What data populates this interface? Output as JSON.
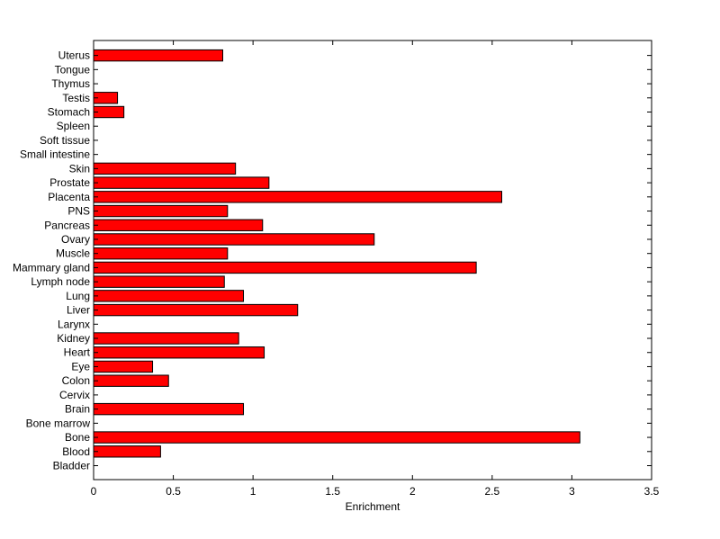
{
  "chart_data": {
    "type": "bar",
    "orientation": "horizontal",
    "title": "",
    "xlabel": "Enrichment",
    "ylabel": "",
    "xlim": [
      0,
      3.5
    ],
    "xticks": [
      "0",
      "0.5",
      "1",
      "1.5",
      "2",
      "2.5",
      "3",
      "3.5"
    ],
    "grid": false,
    "bar_color": "#ff0000",
    "bar_edge_color": "#000000",
    "categories": [
      "Bladder",
      "Blood",
      "Bone",
      "Bone marrow",
      "Brain",
      "Cervix",
      "Colon",
      "Eye",
      "Heart",
      "Kidney",
      "Larynx",
      "Liver",
      "Lung",
      "Lymph node",
      "Mammary gland",
      "Muscle",
      "Ovary",
      "Pancreas",
      "PNS",
      "Placenta",
      "Prostate",
      "Skin",
      "Small intestine",
      "Soft tissue",
      "Spleen",
      "Stomach",
      "Testis",
      "Thymus",
      "Tongue",
      "Uterus"
    ],
    "values": [
      0,
      0.42,
      3.05,
      0,
      0.94,
      0,
      0.47,
      0.37,
      1.07,
      0.91,
      0,
      1.28,
      0.94,
      0.82,
      2.4,
      0.84,
      1.76,
      1.06,
      0.84,
      2.56,
      1.1,
      0.89,
      0,
      0,
      0,
      0.19,
      0.15,
      0,
      0,
      0.81
    ]
  }
}
